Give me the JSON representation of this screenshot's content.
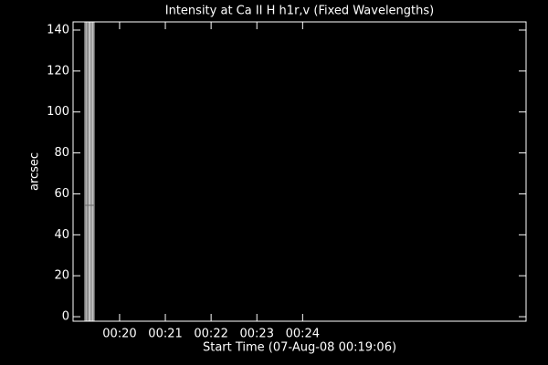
{
  "chart_data": {
    "type": "image",
    "title": "Intensity at Ca II H h1r,v (Fixed Wavelengths)",
    "x_label": "Start Time (07-Aug-08 00:19:06)",
    "y_label": "arcsec",
    "xlim": [
      1139,
      1733
    ],
    "xticks": [
      {
        "value": 1200,
        "label": "00:20"
      },
      {
        "value": 1260,
        "label": "00:21"
      },
      {
        "value": 1320,
        "label": "00:22"
      },
      {
        "value": 1380,
        "label": "00:23"
      },
      {
        "value": 1440,
        "label": "00:24"
      }
    ],
    "ylim": [
      -2.2,
      144
    ],
    "yticks": [
      0,
      20,
      40,
      60,
      80,
      100,
      120,
      140
    ]
  }
}
